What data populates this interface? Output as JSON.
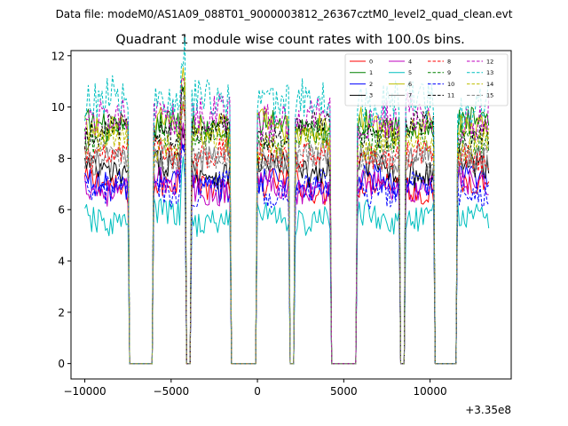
{
  "chart_data": {
    "type": "line",
    "suptitle": "Data file: modeM0/AS1A09_088T01_9000003812_26367cztM0_level2_quad_clean.evt",
    "title": "Quadrant 1 module wise count rates with 100.0s bins.",
    "xlabel": "",
    "ylabel": "",
    "x_offset_text": "+3.35e8",
    "xlim": [
      -10800,
      14700
    ],
    "ylim": [
      -0.6,
      12.2
    ],
    "xticks": [
      -10000,
      -5000,
      0,
      5000,
      10000
    ],
    "xtick_labels": [
      "−10000",
      "−5000",
      "0",
      "5000",
      "10000"
    ],
    "yticks": [
      0,
      2,
      4,
      6,
      8,
      10,
      12
    ],
    "ytick_labels": [
      "0",
      "2",
      "4",
      "6",
      "8",
      "10",
      "12"
    ],
    "grid": false,
    "legend_position": "top-right",
    "legend_columns": 4,
    "on_segments_x": [
      [
        -10000,
        -7500
      ],
      [
        -6000,
        -4500
      ],
      [
        -4400,
        -4200
      ],
      [
        -3800,
        -1600
      ],
      [
        0,
        1800
      ],
      [
        2200,
        4200
      ],
      [
        5800,
        8200
      ],
      [
        8600,
        10200
      ],
      [
        11600,
        13400
      ]
    ],
    "gap_rate": 0.0,
    "series": [
      {
        "name": "0",
        "color": "#ff0000",
        "style": "solid",
        "level": 6.9
      },
      {
        "name": "1",
        "color": "#008000",
        "style": "solid",
        "level": 9.2
      },
      {
        "name": "2",
        "color": "#0000ff",
        "style": "solid",
        "level": 7.0
      },
      {
        "name": "3",
        "color": "#000000",
        "style": "solid",
        "level": 7.6
      },
      {
        "name": "4",
        "color": "#bf00bf",
        "style": "solid",
        "level": 6.9
      },
      {
        "name": "5",
        "color": "#00bfbf",
        "style": "solid",
        "level": 5.7
      },
      {
        "name": "6",
        "color": "#bfbf00",
        "style": "solid",
        "level": 9.3
      },
      {
        "name": "7",
        "color": "#808080",
        "style": "solid",
        "level": 8.1
      },
      {
        "name": "8",
        "color": "#ff0000",
        "style": "dashed",
        "level": 8.2
      },
      {
        "name": "9",
        "color": "#008000",
        "style": "dashed",
        "level": 8.9
      },
      {
        "name": "10",
        "color": "#0000ff",
        "style": "dashed",
        "level": 6.8
      },
      {
        "name": "11",
        "color": "#000000",
        "style": "dashed",
        "level": 9.1
      },
      {
        "name": "12",
        "color": "#bf00bf",
        "style": "dashed",
        "level": 9.6
      },
      {
        "name": "13",
        "color": "#00bfbf",
        "style": "dashed",
        "level": 10.2
      },
      {
        "name": "14",
        "color": "#bfbf00",
        "style": "dashed",
        "level": 8.6
      },
      {
        "name": "15",
        "color": "#808080",
        "style": "dashed",
        "level": 7.9
      }
    ]
  }
}
